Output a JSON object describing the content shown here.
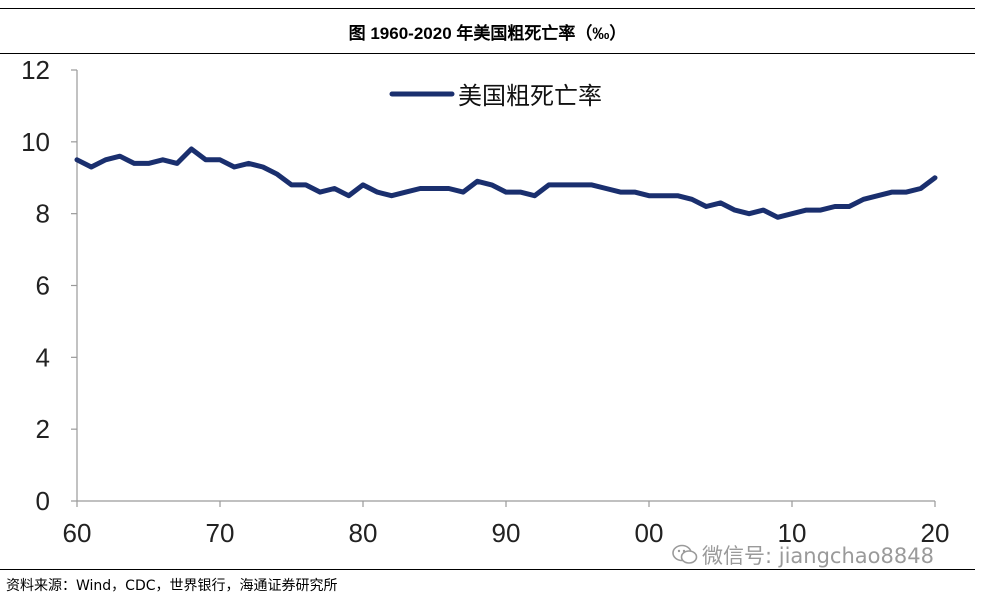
{
  "figure_title": "图  1960-2020 年美国粗死亡率（‰）",
  "source_note": "资料来源：Wind，CDC，世界银行，海通证券研究所",
  "watermark_text": "微信号: jiangchao8848",
  "colors": {
    "series": "#1a2f6e",
    "axis": "#9a9a9a",
    "text": "#222222"
  },
  "chart_data": {
    "type": "line",
    "title": "图 1960-2020 年美国粗死亡率（‰）",
    "xlabel": "",
    "ylabel": "",
    "xlim": [
      1960,
      2020
    ],
    "ylim": [
      0,
      12
    ],
    "grid": false,
    "legend_position": "top-center",
    "yticks": [
      0,
      2,
      4,
      6,
      8,
      10,
      12
    ],
    "xticks": [
      {
        "value": 1960,
        "label": "60"
      },
      {
        "value": 1970,
        "label": "70"
      },
      {
        "value": 1980,
        "label": "80"
      },
      {
        "value": 1990,
        "label": "90"
      },
      {
        "value": 2000,
        "label": "00"
      },
      {
        "value": 2010,
        "label": "10"
      },
      {
        "value": 2020,
        "label": "20"
      }
    ],
    "series": [
      {
        "name": "美国粗死亡率",
        "x": [
          1960,
          1961,
          1962,
          1963,
          1964,
          1965,
          1966,
          1967,
          1968,
          1969,
          1970,
          1971,
          1972,
          1973,
          1974,
          1975,
          1976,
          1977,
          1978,
          1979,
          1980,
          1981,
          1982,
          1983,
          1984,
          1985,
          1986,
          1987,
          1988,
          1989,
          1990,
          1991,
          1992,
          1993,
          1994,
          1995,
          1996,
          1997,
          1998,
          1999,
          2000,
          2001,
          2002,
          2003,
          2004,
          2005,
          2006,
          2007,
          2008,
          2009,
          2010,
          2011,
          2012,
          2013,
          2014,
          2015,
          2016,
          2017,
          2018,
          2019,
          2020
        ],
        "values": [
          9.5,
          9.3,
          9.5,
          9.6,
          9.4,
          9.4,
          9.5,
          9.4,
          9.8,
          9.5,
          9.5,
          9.3,
          9.4,
          9.3,
          9.1,
          8.8,
          8.8,
          8.6,
          8.7,
          8.5,
          8.8,
          8.6,
          8.5,
          8.6,
          8.7,
          8.7,
          8.7,
          8.6,
          8.9,
          8.8,
          8.6,
          8.6,
          8.5,
          8.8,
          8.8,
          8.8,
          8.8,
          8.7,
          8.6,
          8.6,
          8.5,
          8.5,
          8.5,
          8.4,
          8.2,
          8.3,
          8.1,
          8.0,
          8.1,
          7.9,
          8.0,
          8.1,
          8.1,
          8.2,
          8.2,
          8.4,
          8.5,
          8.6,
          8.6,
          8.7,
          9.0
        ]
      }
    ]
  }
}
